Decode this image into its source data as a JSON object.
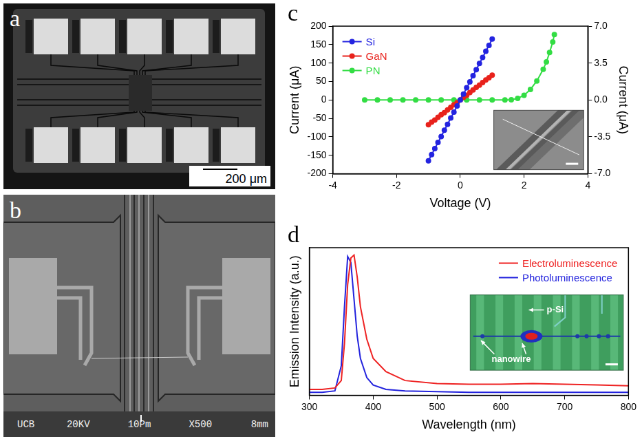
{
  "panel_a": {
    "panel": "a",
    "scale_bar": "200 μm"
  },
  "panel_b": {
    "panel": "b",
    "info_bar": [
      "UCB",
      "20KV",
      "10Pm",
      "X500",
      "8mm"
    ]
  },
  "chart_data": [
    {
      "panel": "c",
      "type": "line",
      "x_label": "Voltage (V)",
      "y_label": "Current (μA)",
      "y2_label": "Current (μA)",
      "xlim": [
        -4,
        4
      ],
      "xticks": [
        -4,
        -2,
        0,
        2,
        4
      ],
      "ylim": [
        -200,
        200
      ],
      "yticks": [
        -200,
        -150,
        -100,
        -50,
        0,
        50,
        100,
        150,
        200
      ],
      "y2lim": [
        -7,
        7
      ],
      "y2ticks": [
        {
          "value": -7,
          "label": "-7.0"
        },
        {
          "value": -3.5,
          "label": "-3.5"
        },
        {
          "value": 0,
          "label": "0.0"
        },
        {
          "value": 3.5,
          "label": "3.5"
        },
        {
          "value": 7,
          "label": "7.0"
        }
      ],
      "grid": false,
      "legend": "upper left",
      "marker": "circle",
      "line_style": "solid",
      "series": [
        {
          "name": "Si",
          "color": "#2424e0",
          "axis": "y",
          "x": [
            -1,
            -0.9,
            -0.8,
            -0.7,
            -0.6,
            -0.5,
            -0.4,
            -0.3,
            -0.2,
            -0.1,
            0,
            0.1,
            0.2,
            0.3,
            0.4,
            0.5,
            0.6,
            0.7,
            0.8,
            0.9,
            1
          ],
          "values": [
            -165,
            -148,
            -132,
            -115,
            -99,
            -82,
            -66,
            -49,
            -33,
            -16,
            0,
            16,
            33,
            49,
            66,
            82,
            99,
            115,
            132,
            148,
            165
          ]
        },
        {
          "name": "GaN",
          "color": "#e8221c",
          "axis": "y2",
          "x": [
            -1,
            -0.9,
            -0.8,
            -0.7,
            -0.6,
            -0.5,
            -0.4,
            -0.3,
            -0.2,
            -0.1,
            0,
            0.1,
            0.2,
            0.3,
            0.4,
            0.5,
            0.6,
            0.7,
            0.8,
            0.9,
            1
          ],
          "values": [
            -2.35,
            -2.1,
            -1.9,
            -1.65,
            -1.4,
            -1.2,
            -0.95,
            -0.7,
            -0.45,
            -0.25,
            0,
            0.25,
            0.45,
            0.7,
            0.95,
            1.2,
            1.4,
            1.65,
            1.9,
            2.1,
            2.35
          ]
        },
        {
          "name": "PN",
          "color": "#33dd44",
          "axis": "y2",
          "x": [
            -3,
            -2.6,
            -2.2,
            -1.8,
            -1.4,
            -1,
            -0.6,
            -0.2,
            0.2,
            0.6,
            1,
            1.4,
            1.6,
            1.8,
            2,
            2.2,
            2.4,
            2.6,
            2.7,
            2.8,
            2.9,
            2.95
          ],
          "values": [
            0,
            0,
            0,
            0,
            0,
            0,
            0,
            0,
            0,
            0,
            0,
            0,
            0.02,
            0.15,
            0.45,
            1.0,
            1.8,
            2.9,
            3.6,
            4.5,
            5.5,
            6.2
          ]
        }
      ]
    },
    {
      "panel": "d",
      "type": "line",
      "x_label": "Wavelength (nm)",
      "y_label": "Emission Intensity (a.u.)",
      "xlim": [
        300,
        800
      ],
      "xticks": [
        300,
        400,
        500,
        600,
        700,
        800
      ],
      "ylim": [
        0,
        1
      ],
      "tick_labels": "x",
      "grid": false,
      "legend": "upper right",
      "marker": "none",
      "line_style": "solid",
      "inset_labels": [
        "p-Si",
        "nanowire"
      ],
      "series": [
        {
          "name": "Electroluminescence",
          "color": "#ee2222",
          "x": [
            300,
            320,
            340,
            350,
            355,
            360,
            365,
            370,
            375,
            380,
            390,
            400,
            420,
            450,
            500,
            550,
            600,
            650,
            700,
            750,
            800
          ],
          "values": [
            0.04,
            0.04,
            0.05,
            0.1,
            0.35,
            0.75,
            0.93,
            0.95,
            0.8,
            0.6,
            0.38,
            0.25,
            0.16,
            0.1,
            0.08,
            0.075,
            0.075,
            0.08,
            0.075,
            0.07,
            0.065
          ]
        },
        {
          "name": "Photoluminescence",
          "color": "#2222dd",
          "x": [
            300,
            320,
            340,
            350,
            355,
            360,
            365,
            370,
            375,
            380,
            390,
            400,
            420,
            450,
            500,
            550,
            600,
            650,
            700,
            750,
            800
          ],
          "values": [
            0.02,
            0.02,
            0.03,
            0.2,
            0.6,
            0.94,
            0.9,
            0.65,
            0.4,
            0.25,
            0.12,
            0.07,
            0.04,
            0.03,
            0.025,
            0.02,
            0.02,
            0.02,
            0.02,
            0.02,
            0.02
          ]
        }
      ]
    }
  ]
}
